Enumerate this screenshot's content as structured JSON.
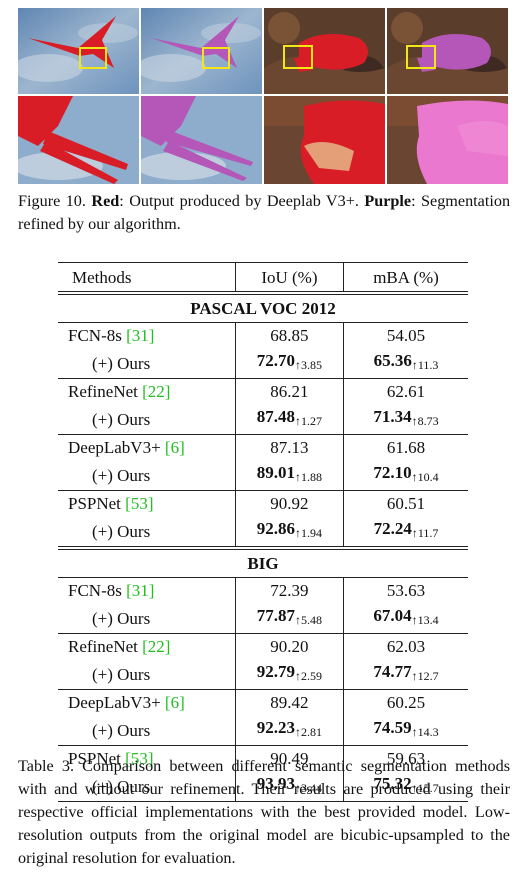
{
  "figure": {
    "caption_label": "Figure 10.",
    "caption_red": "Red",
    "caption_text1": ": Output produced by Deeplab V3+.",
    "caption_purple": "Purple",
    "caption_text2": ": Segmentation refined by our algorithm."
  },
  "table": {
    "columns": [
      "Methods",
      "IoU (%)",
      "mBA (%)"
    ],
    "sections": [
      {
        "title": "PASCAL VOC 2012",
        "rows": [
          {
            "method": "FCN-8s",
            "cite": "31",
            "iou": "68.85",
            "mba": "54.05",
            "ours": {
              "iou": "72.70",
              "iou_gain": "↑3.85",
              "mba": "65.36",
              "mba_gain": "↑11.3"
            }
          },
          {
            "method": "RefineNet",
            "cite": "22",
            "iou": "86.21",
            "mba": "62.61",
            "ours": {
              "iou": "87.48",
              "iou_gain": "↑1.27",
              "mba": "71.34",
              "mba_gain": "↑8.73"
            }
          },
          {
            "method": "DeepLabV3+",
            "cite": "6",
            "iou": "87.13",
            "mba": "61.68",
            "ours": {
              "iou": "89.01",
              "iou_gain": "↑1.88",
              "mba": "72.10",
              "mba_gain": "↑10.4"
            }
          },
          {
            "method": "PSPNet",
            "cite": "53",
            "iou": "90.92",
            "mba": "60.51",
            "ours": {
              "iou": "92.86",
              "iou_gain": "↑1.94",
              "mba": "72.24",
              "mba_gain": "↑11.7"
            }
          }
        ]
      },
      {
        "title": "BIG",
        "rows": [
          {
            "method": "FCN-8s",
            "cite": "31",
            "iou": "72.39",
            "mba": "53.63",
            "ours": {
              "iou": "77.87",
              "iou_gain": "↑5.48",
              "mba": "67.04",
              "mba_gain": "↑13.4"
            }
          },
          {
            "method": "RefineNet",
            "cite": "22",
            "iou": "90.20",
            "mba": "62.03",
            "ours": {
              "iou": "92.79",
              "iou_gain": "↑2.59",
              "mba": "74.77",
              "mba_gain": "↑12.7"
            }
          },
          {
            "method": "DeepLabV3+",
            "cite": "6",
            "iou": "89.42",
            "mba": "60.25",
            "ours": {
              "iou": "92.23",
              "iou_gain": "↑2.81",
              "mba": "74.59",
              "mba_gain": "↑14.3"
            }
          },
          {
            "method": "PSPNet",
            "cite": "53",
            "iou": "90.49",
            "mba": "59.63",
            "ours": {
              "iou": "93.93",
              "iou_gain": "↑3.44",
              "mba": "75.32",
              "mba_gain": "↑15.7"
            }
          }
        ]
      }
    ],
    "ours_label": "(+) Ours",
    "caption": "Table 3. Comparison between different semantic segmentation methods with and without our refinement. Their results are produced using their respective official implementations with the best provided model. Low-resolution outputs from the original model are bicubic-upsampled to the original resolution for evaluation."
  },
  "colors": {
    "red_mask": "#d81d27",
    "purple_mask": "#b457b8",
    "sky": "#7c9fc2",
    "box": "#f2e616",
    "cite": "#1fbf1f"
  }
}
